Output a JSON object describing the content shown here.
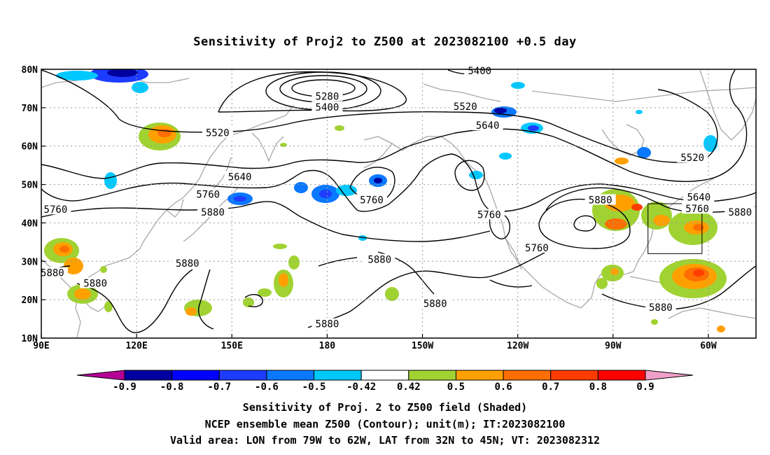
{
  "title": "Sensitivity of Proj2 to Z500 at 2023082100 +0.5 day",
  "map": {
    "lon_labels": [
      "90E",
      "120E",
      "150E",
      "180",
      "150W",
      "120W",
      "90W",
      "60W"
    ],
    "lon_values": [
      90,
      120,
      150,
      180,
      210,
      240,
      270,
      300
    ],
    "lat_labels": [
      "80N",
      "70N",
      "60N",
      "50N",
      "40N",
      "30N",
      "20N",
      "10N"
    ],
    "lat_values": [
      80,
      70,
      60,
      50,
      40,
      30,
      20,
      10
    ],
    "extent": {
      "lon": [
        90,
        315
      ],
      "lat": [
        10,
        80
      ]
    },
    "contour_labels": [
      {
        "text": "5400",
        "lon": 228,
        "lat": 79.6
      },
      {
        "text": "5280",
        "lon": 180,
        "lat": 73
      },
      {
        "text": "5400",
        "lon": 180,
        "lat": 70.2
      },
      {
        "text": "5520",
        "lon": 145.5,
        "lat": 63.5
      },
      {
        "text": "5520",
        "lon": 223.5,
        "lat": 70.3
      },
      {
        "text": "5640",
        "lon": 230.5,
        "lat": 65.4
      },
      {
        "text": "5640",
        "lon": 152.5,
        "lat": 52
      },
      {
        "text": "5520",
        "lon": 295,
        "lat": 57
      },
      {
        "text": "5760",
        "lon": 142.5,
        "lat": 47.5
      },
      {
        "text": "5760",
        "lon": 94.5,
        "lat": 43.5
      },
      {
        "text": "5760",
        "lon": 194,
        "lat": 46
      },
      {
        "text": "5640",
        "lon": 297,
        "lat": 46.7
      },
      {
        "text": "5880",
        "lon": 266,
        "lat": 46
      },
      {
        "text": "5760",
        "lon": 296.5,
        "lat": 43.7
      },
      {
        "text": "5880",
        "lon": 310,
        "lat": 42.8
      },
      {
        "text": "5880",
        "lon": 144,
        "lat": 42.8
      },
      {
        "text": "5760",
        "lon": 231,
        "lat": 42.2
      },
      {
        "text": "5760",
        "lon": 246,
        "lat": 33.5
      },
      {
        "text": "5880",
        "lon": 196.5,
        "lat": 30.5
      },
      {
        "text": "5880",
        "lon": 136,
        "lat": 29.5
      },
      {
        "text": "5880",
        "lon": 93.5,
        "lat": 27
      },
      {
        "text": "5880",
        "lon": 107,
        "lat": 24.3
      },
      {
        "text": "5880",
        "lon": 214,
        "lat": 19
      },
      {
        "text": "5880",
        "lon": 285,
        "lat": 18
      },
      {
        "text": "5880",
        "lon": 180,
        "lat": 13.7
      }
    ],
    "valid_box": {
      "lon": [
        281,
        298
      ],
      "lat": [
        32,
        45
      ]
    }
  },
  "colorbar": {
    "ticks": [
      "-0.9",
      "-0.8",
      "-0.7",
      "-0.6",
      "-0.5",
      "-0.42",
      "0.42",
      "0.5",
      "0.6",
      "0.7",
      "0.8",
      "0.9"
    ],
    "colors": [
      "#b40096",
      "#0000a0",
      "#0000ff",
      "#1e3cff",
      "#0a78ff",
      "#00c8ff",
      "#ffffff",
      "#a0d232",
      "#ffa000",
      "#ff6e00",
      "#ff3c00",
      "#ff0000",
      "#f0a0c8"
    ]
  },
  "footer": {
    "line1": "Sensitivity of Proj. 2 to Z500 field (Shaded)",
    "line2": "NCEP ensemble mean Z500 (Contour); unit(m); IT:2023082100",
    "line3": "Valid area: LON from 79W to 62W, LAT from 32N to 45N; VT: 2023082312"
  }
}
